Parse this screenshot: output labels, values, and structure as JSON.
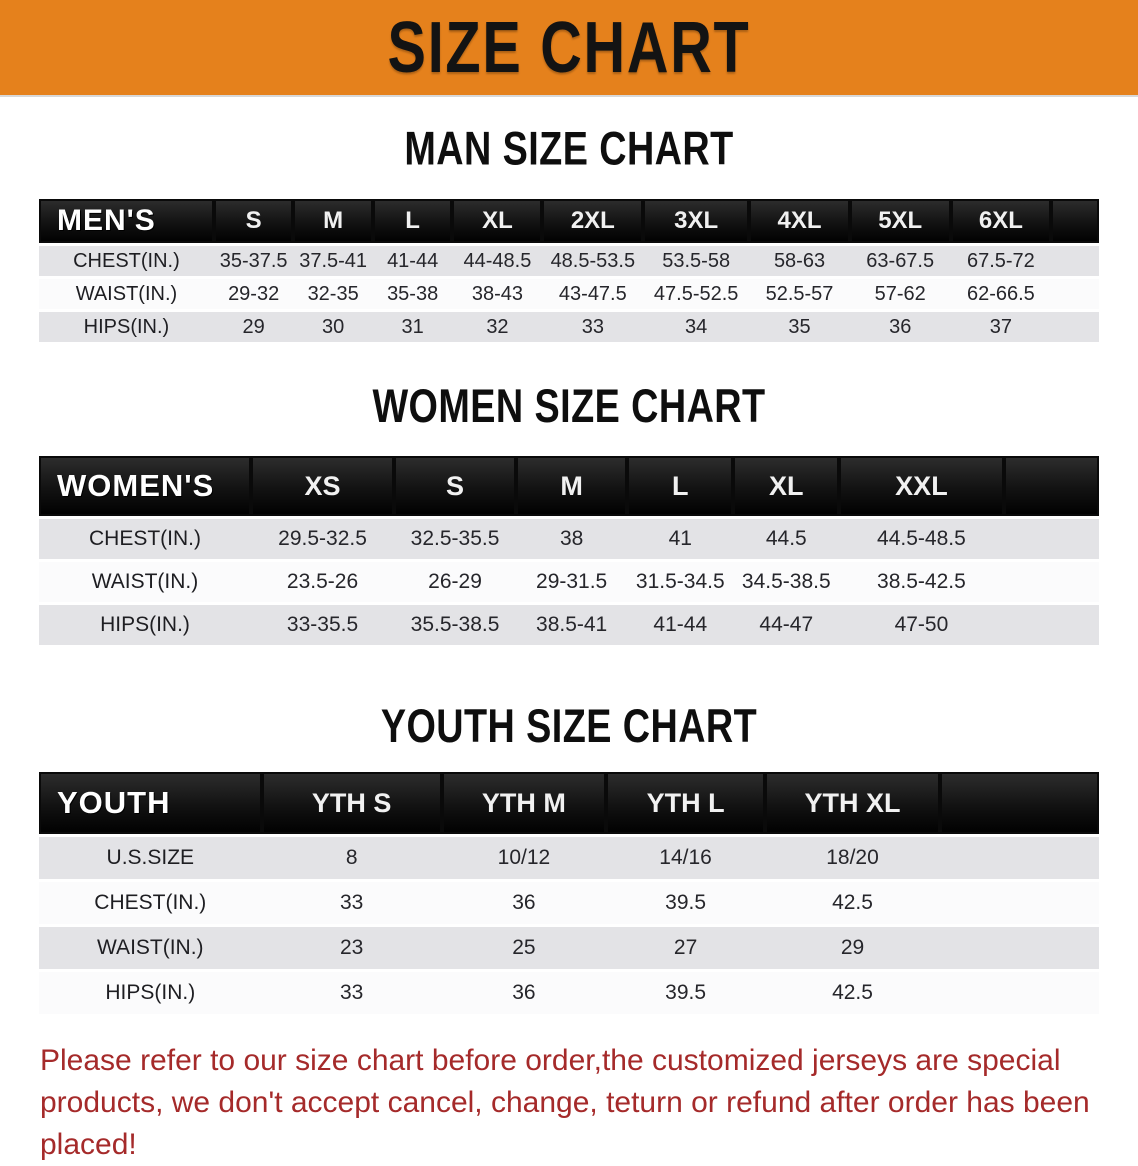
{
  "banner": {
    "title": "SIZE CHART",
    "bg_color": "#E5811C"
  },
  "sections": [
    {
      "heading": "MAN SIZE CHART",
      "table": {
        "label": "MEN'S",
        "columns": [
          "S",
          "M",
          "L",
          "XL",
          "2XL",
          "3XL",
          "4XL",
          "5XL",
          "6XL"
        ],
        "rows": [
          {
            "label": "CHEST(IN.)",
            "values": [
              "35-37.5",
              "37.5-41",
              "41-44",
              "44-48.5",
              "48.5-53.5",
              "53.5-58",
              "58-63",
              "63-67.5",
              "67.5-72"
            ]
          },
          {
            "label": "WAIST(IN.)",
            "values": [
              "29-32",
              "32-35",
              "35-38",
              "38-43",
              "43-47.5",
              "47.5-52.5",
              "52.5-57",
              "57-62",
              "62-66.5"
            ]
          },
          {
            "label": "HIPS(IN.)",
            "values": [
              "29",
              "30",
              "31",
              "32",
              "33",
              "34",
              "35",
              "36",
              "37"
            ]
          }
        ]
      }
    },
    {
      "heading": "WOMEN SIZE CHART",
      "table": {
        "label": "WOMEN'S",
        "columns": [
          "XS",
          "S",
          "M",
          "L",
          "XL",
          "XXL"
        ],
        "rows": [
          {
            "label": "CHEST(IN.)",
            "values": [
              "29.5-32.5",
              "32.5-35.5",
              "38",
              "41",
              "44.5",
              "44.5-48.5"
            ]
          },
          {
            "label": "WAIST(IN.)",
            "values": [
              "23.5-26",
              "26-29",
              "29-31.5",
              "31.5-34.5",
              "34.5-38.5",
              "38.5-42.5"
            ]
          },
          {
            "label": "HIPS(IN.)",
            "values": [
              "33-35.5",
              "35.5-38.5",
              "38.5-41",
              "41-44",
              "44-47",
              "47-50"
            ]
          }
        ]
      }
    },
    {
      "heading": "YOUTH SIZE CHART",
      "table": {
        "label": "YOUTH",
        "columns": [
          "YTH S",
          "YTH M",
          "YTH L",
          "YTH XL"
        ],
        "rows": [
          {
            "label": "U.S.SIZE",
            "values": [
              "8",
              "10/12",
              "14/16",
              "18/20"
            ]
          },
          {
            "label": "CHEST(IN.)",
            "values": [
              "33",
              "36",
              "39.5",
              "42.5"
            ]
          },
          {
            "label": "WAIST(IN.)",
            "values": [
              "23",
              "25",
              "27",
              "29"
            ]
          },
          {
            "label": "HIPS(IN.)",
            "values": [
              "33",
              "36",
              "39.5",
              "42.5"
            ]
          }
        ]
      }
    }
  ],
  "disclaimer": {
    "text": "Please refer to our size chart before order,the customized jerseys are special products, we don't accept cancel, change, teturn or refund after order has been placed!",
    "color": "#A52A2A"
  }
}
